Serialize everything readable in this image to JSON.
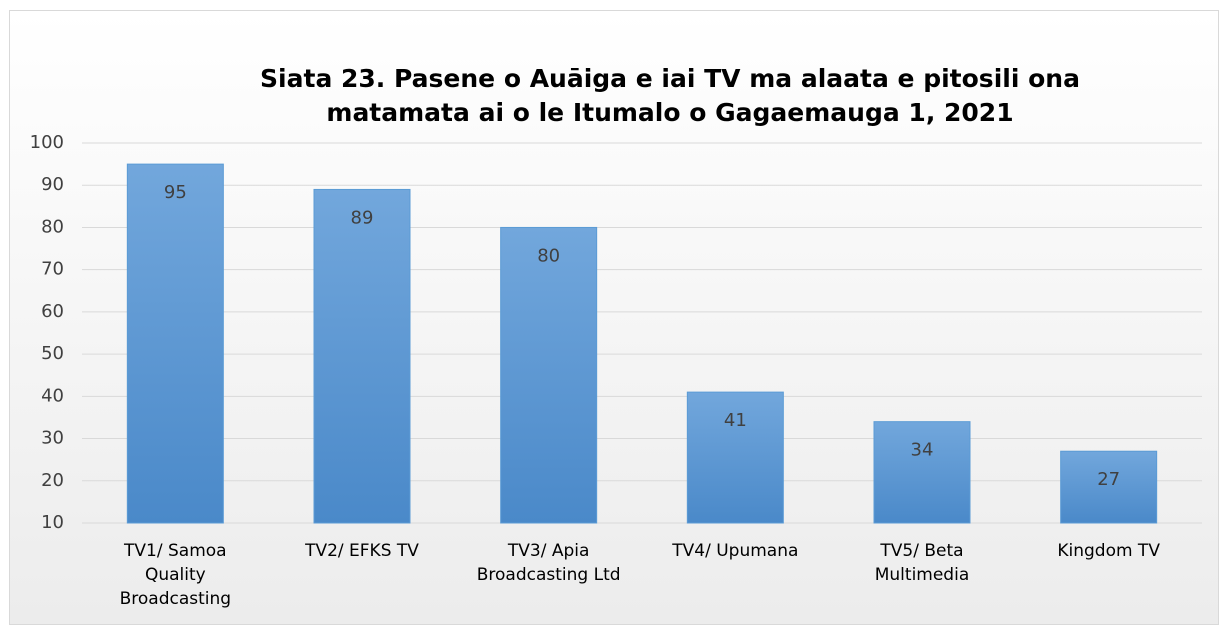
{
  "chart_data": {
    "type": "bar",
    "title": "Siata 23. Pasene o Auāiga e iai TV ma alaata e pitosili ona matamata ai o le Itumalo o Gagaemauga 1, 2021",
    "categories": [
      "TV1/ Samoa Quality Broadcasting",
      "TV2/ EFKS TV",
      "TV3/ Apia Broadcasting Ltd",
      "TV4/ Upumana",
      "TV5/ Beta Multimedia",
      "Kingdom TV"
    ],
    "values": [
      95,
      89,
      80,
      41,
      34,
      27
    ],
    "color": "#5b9bd5",
    "ylim": [
      10,
      100
    ],
    "yticks": [
      10,
      20,
      30,
      40,
      50,
      60,
      70,
      80,
      90,
      100
    ],
    "grid": true
  }
}
